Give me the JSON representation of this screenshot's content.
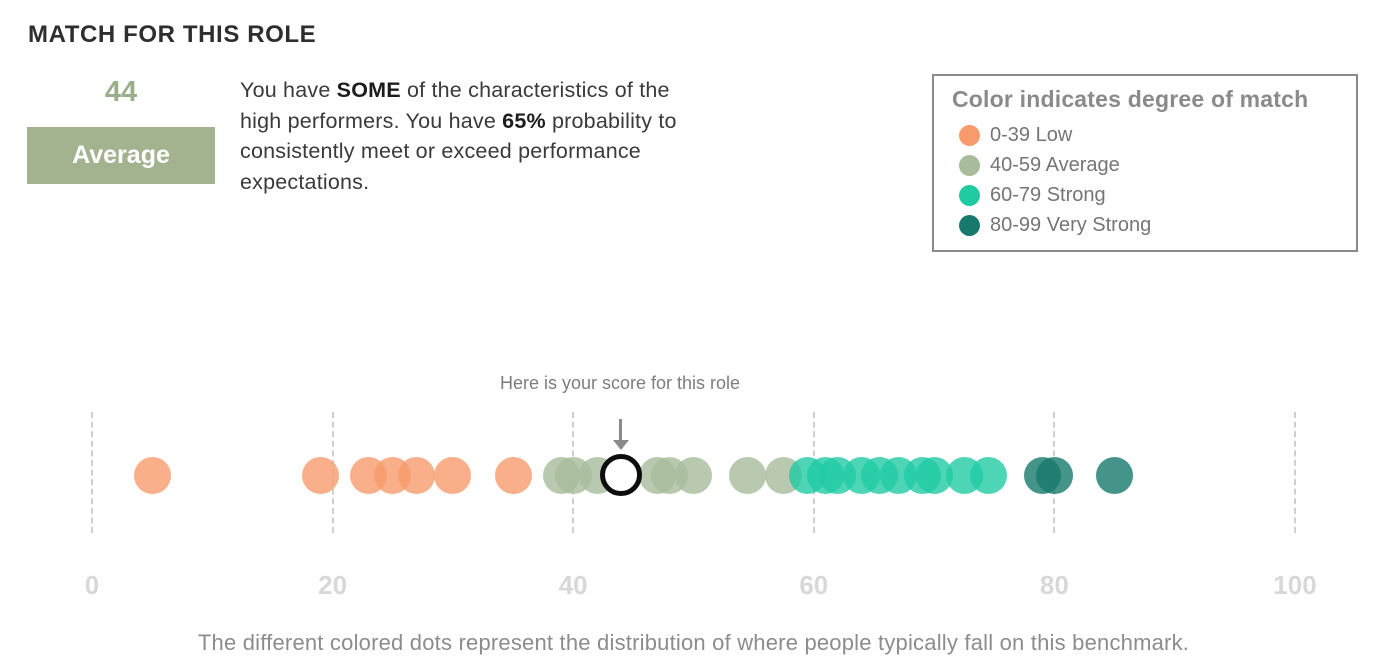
{
  "header": {
    "title": "MATCH FOR THIS ROLE"
  },
  "score_panel": {
    "score": "44",
    "score_color": "#9bae8b",
    "badge_label": "Average",
    "badge_bg": "#a3b390",
    "badge_text_color": "#ffffff"
  },
  "description": {
    "segments": [
      {
        "text": "You have ",
        "bold": false
      },
      {
        "text": "SOME",
        "bold": true
      },
      {
        "text": " of the characteristics of the high performers. You have ",
        "bold": false
      },
      {
        "text": "65%",
        "bold": true
      },
      {
        "text": " probability to consistently meet or exceed performance expectations.",
        "bold": false
      }
    ]
  },
  "legend": {
    "title": "Color indicates degree of match",
    "items": [
      {
        "label": "0-39 Low",
        "color": "#f89b6c"
      },
      {
        "label": "40-59 Average",
        "color": "#a8bc9c"
      },
      {
        "label": "60-79 Strong",
        "color": "#20cba4"
      },
      {
        "label": "80-99 Very Strong",
        "color": "#17796c"
      }
    ]
  },
  "chart_data": {
    "type": "scatter",
    "title": "",
    "xlabel": "",
    "xlim": [
      0,
      100
    ],
    "axis_ticks": [
      "0",
      "20",
      "40",
      "60",
      "80",
      "100"
    ],
    "grid": "dashed-vertical",
    "user_score": 44,
    "annotation": "Here is your score for this role",
    "marker_fill": "#ffffff",
    "marker_ring": "#0d0d0d",
    "groups": [
      {
        "name": "Low",
        "color": "#f89b6c",
        "values": [
          5,
          19,
          23,
          25,
          27,
          30,
          35
        ]
      },
      {
        "name": "Average",
        "color": "#a8bc9c",
        "values": [
          39,
          40,
          42,
          47,
          48,
          50,
          54.5,
          57.5
        ]
      },
      {
        "name": "Strong",
        "color": "#20cba4",
        "values": [
          59.5,
          61,
          62,
          64,
          65.5,
          67,
          69,
          70,
          72.5,
          74.5
        ]
      },
      {
        "name": "Very Strong",
        "color": "#17796c",
        "values": [
          79,
          80,
          85
        ]
      }
    ],
    "caption": "The different colored dots represent the distribution of where people typically fall on this benchmark."
  }
}
